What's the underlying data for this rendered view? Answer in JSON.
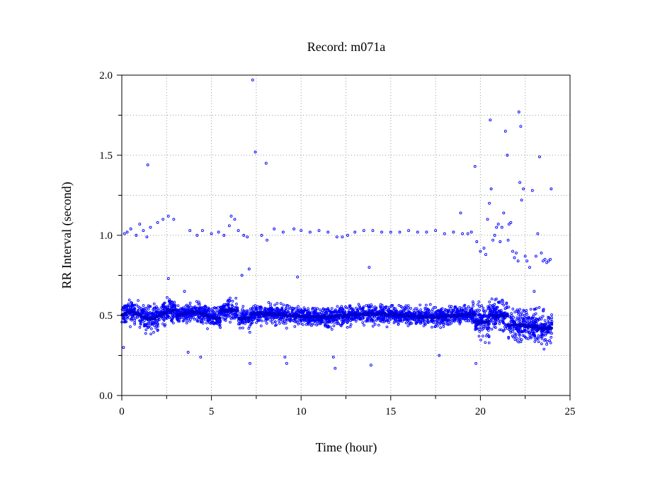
{
  "chart_data": {
    "type": "scatter",
    "title": "Record:  m071a",
    "xlabel": "Time (hour)",
    "ylabel": "RR Interval (second)",
    "xlim": [
      0,
      25
    ],
    "ylim": [
      0,
      2
    ],
    "xticks": [
      0,
      5,
      10,
      15,
      20,
      25
    ],
    "xtick_labels": [
      "0",
      "5",
      "10",
      "15",
      "20",
      "25"
    ],
    "yticks": [
      0,
      0.5,
      1,
      1.5,
      2
    ],
    "ytick_labels": [
      "0.0",
      "0.5",
      "1.0",
      "1.5",
      "2.0"
    ],
    "grid": true,
    "marker_color": "#0000ff",
    "series": [
      {
        "values": [
          [
            0.1,
            0.3
          ],
          [
            0.15,
            1.01
          ],
          [
            0.3,
            1.02
          ],
          [
            0.5,
            1.04
          ],
          [
            0.8,
            1.0
          ],
          [
            1.0,
            1.07
          ],
          [
            1.2,
            1.03
          ],
          [
            1.4,
            0.99
          ],
          [
            1.45,
            1.44
          ],
          [
            1.6,
            1.05
          ],
          [
            2.0,
            1.08
          ],
          [
            2.3,
            1.1
          ],
          [
            2.6,
            1.12
          ],
          [
            2.9,
            1.1
          ],
          [
            2.6,
            0.73
          ],
          [
            3.5,
            0.65
          ],
          [
            3.7,
            0.27
          ],
          [
            3.8,
            1.03
          ],
          [
            4.2,
            1.0
          ],
          [
            4.4,
            0.24
          ],
          [
            4.5,
            1.03
          ],
          [
            5.0,
            1.01
          ],
          [
            5.4,
            1.02
          ],
          [
            5.7,
            1.0
          ],
          [
            6.0,
            1.06
          ],
          [
            6.1,
            1.12
          ],
          [
            6.3,
            1.1
          ],
          [
            6.5,
            1.03
          ],
          [
            6.7,
            0.75
          ],
          [
            6.8,
            1.0
          ],
          [
            7.0,
            0.99
          ],
          [
            7.1,
            0.79
          ],
          [
            7.15,
            0.2
          ],
          [
            7.3,
            1.97
          ],
          [
            7.45,
            1.52
          ],
          [
            7.8,
            1.0
          ],
          [
            8.05,
            1.45
          ],
          [
            8.1,
            0.97
          ],
          [
            8.5,
            1.04
          ],
          [
            9.0,
            1.02
          ],
          [
            9.1,
            0.24
          ],
          [
            9.2,
            0.2
          ],
          [
            9.6,
            1.04
          ],
          [
            9.8,
            0.74
          ],
          [
            10.0,
            1.03
          ],
          [
            10.5,
            1.02
          ],
          [
            11.0,
            1.03
          ],
          [
            11.5,
            1.02
          ],
          [
            11.8,
            0.24
          ],
          [
            11.9,
            0.17
          ],
          [
            12.0,
            0.99
          ],
          [
            12.3,
            0.99
          ],
          [
            12.6,
            1.0
          ],
          [
            13.0,
            1.02
          ],
          [
            13.5,
            1.03
          ],
          [
            13.8,
            0.8
          ],
          [
            13.9,
            0.19
          ],
          [
            14.0,
            1.03
          ],
          [
            14.5,
            1.02
          ],
          [
            15.0,
            1.02
          ],
          [
            15.5,
            1.02
          ],
          [
            16.0,
            1.03
          ],
          [
            16.5,
            1.02
          ],
          [
            17.0,
            1.02
          ],
          [
            17.5,
            1.03
          ],
          [
            17.7,
            0.25
          ],
          [
            18.0,
            1.01
          ],
          [
            18.5,
            1.02
          ],
          [
            18.9,
            1.14
          ],
          [
            19.0,
            1.01
          ],
          [
            19.3,
            1.01
          ],
          [
            19.5,
            1.02
          ],
          [
            19.7,
            1.43
          ],
          [
            19.75,
            0.2
          ],
          [
            19.8,
            0.96
          ],
          [
            20.0,
            0.9
          ],
          [
            20.2,
            0.92
          ],
          [
            20.3,
            0.88
          ],
          [
            20.4,
            1.1
          ],
          [
            20.5,
            1.2
          ],
          [
            20.55,
            1.72
          ],
          [
            20.6,
            1.29
          ],
          [
            20.7,
            0.97
          ],
          [
            20.8,
            1.0
          ],
          [
            20.9,
            1.05
          ],
          [
            21.0,
            1.07
          ],
          [
            21.1,
            0.96
          ],
          [
            21.2,
            1.05
          ],
          [
            21.3,
            1.14
          ],
          [
            21.4,
            1.65
          ],
          [
            21.5,
            1.5
          ],
          [
            21.55,
            0.97
          ],
          [
            21.6,
            1.07
          ],
          [
            21.7,
            1.08
          ],
          [
            21.8,
            0.9
          ],
          [
            21.9,
            0.86
          ],
          [
            22.0,
            0.89
          ],
          [
            22.1,
            0.84
          ],
          [
            22.15,
            1.77
          ],
          [
            22.2,
            1.33
          ],
          [
            22.25,
            1.68
          ],
          [
            22.3,
            1.22
          ],
          [
            22.4,
            1.29
          ],
          [
            22.5,
            0.87
          ],
          [
            22.6,
            0.84
          ],
          [
            22.75,
            0.8
          ],
          [
            22.9,
            1.28
          ],
          [
            23.0,
            0.65
          ],
          [
            23.1,
            0.87
          ],
          [
            23.2,
            1.01
          ],
          [
            23.3,
            1.49
          ],
          [
            23.4,
            0.89
          ],
          [
            23.5,
            0.84
          ],
          [
            23.6,
            0.85
          ],
          [
            23.7,
            0.83
          ],
          [
            23.8,
            0.84
          ],
          [
            23.9,
            0.85
          ],
          [
            23.95,
            1.29
          ],
          [
            23.5,
            0.53
          ],
          [
            23.7,
            0.32
          ]
        ]
      }
    ]
  }
}
